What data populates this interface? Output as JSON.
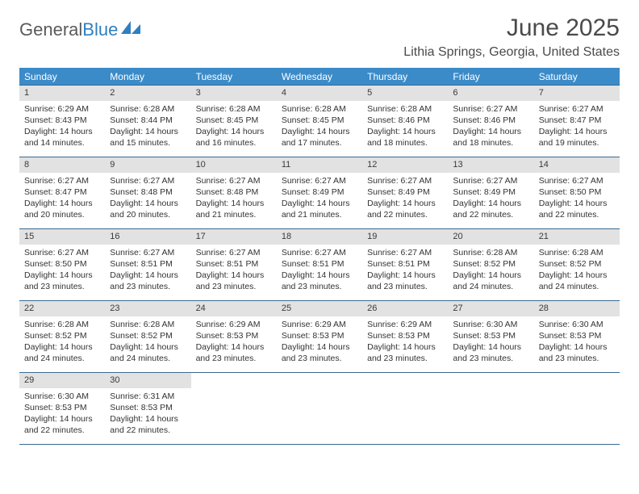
{
  "logo": {
    "word1": "General",
    "word2": "Blue"
  },
  "title": "June 2025",
  "location": "Lithia Springs, Georgia, United States",
  "colors": {
    "header_bg": "#3b8bc9",
    "header_text": "#ffffff",
    "daynum_bg": "#e2e2e2",
    "border": "#3b6a8f",
    "logo_gray": "#5a5a5a",
    "logo_blue": "#2f7fc1",
    "text": "#333333"
  },
  "day_of_week": [
    "Sunday",
    "Monday",
    "Tuesday",
    "Wednesday",
    "Thursday",
    "Friday",
    "Saturday"
  ],
  "weeks": [
    [
      {
        "n": "1",
        "sunrise": "Sunrise: 6:29 AM",
        "sunset": "Sunset: 8:43 PM",
        "d1": "Daylight: 14 hours",
        "d2": "and 14 minutes."
      },
      {
        "n": "2",
        "sunrise": "Sunrise: 6:28 AM",
        "sunset": "Sunset: 8:44 PM",
        "d1": "Daylight: 14 hours",
        "d2": "and 15 minutes."
      },
      {
        "n": "3",
        "sunrise": "Sunrise: 6:28 AM",
        "sunset": "Sunset: 8:45 PM",
        "d1": "Daylight: 14 hours",
        "d2": "and 16 minutes."
      },
      {
        "n": "4",
        "sunrise": "Sunrise: 6:28 AM",
        "sunset": "Sunset: 8:45 PM",
        "d1": "Daylight: 14 hours",
        "d2": "and 17 minutes."
      },
      {
        "n": "5",
        "sunrise": "Sunrise: 6:28 AM",
        "sunset": "Sunset: 8:46 PM",
        "d1": "Daylight: 14 hours",
        "d2": "and 18 minutes."
      },
      {
        "n": "6",
        "sunrise": "Sunrise: 6:27 AM",
        "sunset": "Sunset: 8:46 PM",
        "d1": "Daylight: 14 hours",
        "d2": "and 18 minutes."
      },
      {
        "n": "7",
        "sunrise": "Sunrise: 6:27 AM",
        "sunset": "Sunset: 8:47 PM",
        "d1": "Daylight: 14 hours",
        "d2": "and 19 minutes."
      }
    ],
    [
      {
        "n": "8",
        "sunrise": "Sunrise: 6:27 AM",
        "sunset": "Sunset: 8:47 PM",
        "d1": "Daylight: 14 hours",
        "d2": "and 20 minutes."
      },
      {
        "n": "9",
        "sunrise": "Sunrise: 6:27 AM",
        "sunset": "Sunset: 8:48 PM",
        "d1": "Daylight: 14 hours",
        "d2": "and 20 minutes."
      },
      {
        "n": "10",
        "sunrise": "Sunrise: 6:27 AM",
        "sunset": "Sunset: 8:48 PM",
        "d1": "Daylight: 14 hours",
        "d2": "and 21 minutes."
      },
      {
        "n": "11",
        "sunrise": "Sunrise: 6:27 AM",
        "sunset": "Sunset: 8:49 PM",
        "d1": "Daylight: 14 hours",
        "d2": "and 21 minutes."
      },
      {
        "n": "12",
        "sunrise": "Sunrise: 6:27 AM",
        "sunset": "Sunset: 8:49 PM",
        "d1": "Daylight: 14 hours",
        "d2": "and 22 minutes."
      },
      {
        "n": "13",
        "sunrise": "Sunrise: 6:27 AM",
        "sunset": "Sunset: 8:49 PM",
        "d1": "Daylight: 14 hours",
        "d2": "and 22 minutes."
      },
      {
        "n": "14",
        "sunrise": "Sunrise: 6:27 AM",
        "sunset": "Sunset: 8:50 PM",
        "d1": "Daylight: 14 hours",
        "d2": "and 22 minutes."
      }
    ],
    [
      {
        "n": "15",
        "sunrise": "Sunrise: 6:27 AM",
        "sunset": "Sunset: 8:50 PM",
        "d1": "Daylight: 14 hours",
        "d2": "and 23 minutes."
      },
      {
        "n": "16",
        "sunrise": "Sunrise: 6:27 AM",
        "sunset": "Sunset: 8:51 PM",
        "d1": "Daylight: 14 hours",
        "d2": "and 23 minutes."
      },
      {
        "n": "17",
        "sunrise": "Sunrise: 6:27 AM",
        "sunset": "Sunset: 8:51 PM",
        "d1": "Daylight: 14 hours",
        "d2": "and 23 minutes."
      },
      {
        "n": "18",
        "sunrise": "Sunrise: 6:27 AM",
        "sunset": "Sunset: 8:51 PM",
        "d1": "Daylight: 14 hours",
        "d2": "and 23 minutes."
      },
      {
        "n": "19",
        "sunrise": "Sunrise: 6:27 AM",
        "sunset": "Sunset: 8:51 PM",
        "d1": "Daylight: 14 hours",
        "d2": "and 23 minutes."
      },
      {
        "n": "20",
        "sunrise": "Sunrise: 6:28 AM",
        "sunset": "Sunset: 8:52 PM",
        "d1": "Daylight: 14 hours",
        "d2": "and 24 minutes."
      },
      {
        "n": "21",
        "sunrise": "Sunrise: 6:28 AM",
        "sunset": "Sunset: 8:52 PM",
        "d1": "Daylight: 14 hours",
        "d2": "and 24 minutes."
      }
    ],
    [
      {
        "n": "22",
        "sunrise": "Sunrise: 6:28 AM",
        "sunset": "Sunset: 8:52 PM",
        "d1": "Daylight: 14 hours",
        "d2": "and 24 minutes."
      },
      {
        "n": "23",
        "sunrise": "Sunrise: 6:28 AM",
        "sunset": "Sunset: 8:52 PM",
        "d1": "Daylight: 14 hours",
        "d2": "and 24 minutes."
      },
      {
        "n": "24",
        "sunrise": "Sunrise: 6:29 AM",
        "sunset": "Sunset: 8:53 PM",
        "d1": "Daylight: 14 hours",
        "d2": "and 23 minutes."
      },
      {
        "n": "25",
        "sunrise": "Sunrise: 6:29 AM",
        "sunset": "Sunset: 8:53 PM",
        "d1": "Daylight: 14 hours",
        "d2": "and 23 minutes."
      },
      {
        "n": "26",
        "sunrise": "Sunrise: 6:29 AM",
        "sunset": "Sunset: 8:53 PM",
        "d1": "Daylight: 14 hours",
        "d2": "and 23 minutes."
      },
      {
        "n": "27",
        "sunrise": "Sunrise: 6:30 AM",
        "sunset": "Sunset: 8:53 PM",
        "d1": "Daylight: 14 hours",
        "d2": "and 23 minutes."
      },
      {
        "n": "28",
        "sunrise": "Sunrise: 6:30 AM",
        "sunset": "Sunset: 8:53 PM",
        "d1": "Daylight: 14 hours",
        "d2": "and 23 minutes."
      }
    ],
    [
      {
        "n": "29",
        "sunrise": "Sunrise: 6:30 AM",
        "sunset": "Sunset: 8:53 PM",
        "d1": "Daylight: 14 hours",
        "d2": "and 22 minutes."
      },
      {
        "n": "30",
        "sunrise": "Sunrise: 6:31 AM",
        "sunset": "Sunset: 8:53 PM",
        "d1": "Daylight: 14 hours",
        "d2": "and 22 minutes."
      },
      null,
      null,
      null,
      null,
      null
    ]
  ]
}
